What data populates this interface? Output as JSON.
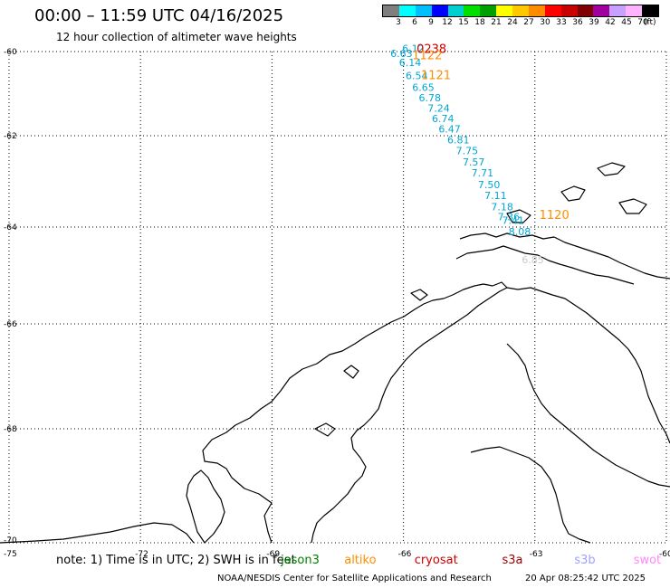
{
  "header": {
    "title": "00:00 – 11:59 UTC 04/16/2025",
    "subtitle": "12 hour collection of altimeter wave heights"
  },
  "colorbar": {
    "colors": [
      "#7f7f7f",
      "#00ffff",
      "#00bfff",
      "#0000ff",
      "#00cfcf",
      "#00e000",
      "#00a000",
      "#ffff00",
      "#ffc800",
      "#ff8c00",
      "#ff0000",
      "#c80000",
      "#800000",
      "#a000a0",
      "#c8a0ff",
      "#ffb4ff",
      "#000000"
    ],
    "ticks": [
      "3",
      "6",
      "9",
      "12",
      "15",
      "18",
      "21",
      "24",
      "27",
      "30",
      "33",
      "36",
      "39",
      "42",
      "45",
      "70"
    ],
    "unit": "(ft)"
  },
  "axes": {
    "lon_ticks": [
      {
        "value": -75,
        "label": "-75"
      },
      {
        "value": -72,
        "label": "-72"
      },
      {
        "value": -69,
        "label": "-69"
      },
      {
        "value": -66,
        "label": "-66"
      },
      {
        "value": -63,
        "label": "-63"
      },
      {
        "value": -60,
        "label": "-60"
      }
    ],
    "lat_ticks": [
      {
        "value": -60,
        "label": "-60"
      },
      {
        "value": -62,
        "label": "-62"
      },
      {
        "value": -64,
        "label": "-64"
      },
      {
        "value": -66,
        "label": "-66"
      },
      {
        "value": -68,
        "label": "-68"
      },
      {
        "value": -70,
        "label": "-70"
      }
    ],
    "grid": "dotted"
  },
  "track": {
    "color": "#00a6d6",
    "points": [
      {
        "lon": -66.03,
        "lat": -60.01,
        "label": "6.12"
      },
      {
        "lon": -66.3,
        "lat": -60.13,
        "label": "6.63"
      },
      {
        "lon": -66.1,
        "lat": -60.34,
        "label": "6.14"
      },
      {
        "lon": -65.95,
        "lat": -60.66,
        "label": "6.54"
      },
      {
        "lon": -65.8,
        "lat": -60.94,
        "label": "6.65"
      },
      {
        "lon": -65.65,
        "lat": -61.18,
        "label": "6.78"
      },
      {
        "lon": -65.45,
        "lat": -61.43,
        "label": "7.24"
      },
      {
        "lon": -65.35,
        "lat": -61.68,
        "label": "6.74"
      },
      {
        "lon": -65.2,
        "lat": -61.92,
        "label": "6.47"
      },
      {
        "lon": -65.0,
        "lat": -62.17,
        "label": "6.81"
      },
      {
        "lon": -64.8,
        "lat": -62.41,
        "label": "7.75"
      },
      {
        "lon": -64.65,
        "lat": -62.65,
        "label": "7.57"
      },
      {
        "lon": -64.45,
        "lat": -62.89,
        "label": "7.71"
      },
      {
        "lon": -64.3,
        "lat": -63.15,
        "label": "7.50"
      },
      {
        "lon": -64.15,
        "lat": -63.39,
        "label": "7.11"
      },
      {
        "lon": -64.0,
        "lat": -63.63,
        "label": "7.18"
      },
      {
        "lon": -63.85,
        "lat": -63.85,
        "label": "7.36"
      },
      {
        "lon": -63.75,
        "lat": -63.93,
        "label": "7.41"
      },
      {
        "lon": -63.6,
        "lat": -64.17,
        "label": "8.08"
      }
    ],
    "faded_label": {
      "lon": -63.3,
      "lat": -64.75,
      "text": "6.85"
    }
  },
  "time_labels": [
    {
      "lon": -65.7,
      "lat": -60.03,
      "text": "0238",
      "color": "#cc0000"
    },
    {
      "lon": -65.8,
      "lat": -60.18,
      "text": "1122",
      "color": "#ff8c00"
    },
    {
      "lon": -65.6,
      "lat": -60.66,
      "text": "1121",
      "color": "#ff8c00"
    },
    {
      "lon": -62.9,
      "lat": -63.82,
      "text": "1120",
      "color": "#ff8c00"
    }
  ],
  "note": "note:  1) Time is in UTC; 2) SWH is in feet",
  "satellites": [
    {
      "name": "jason3",
      "color": "#008000",
      "lon": -68.8
    },
    {
      "name": "altiko",
      "color": "#ff8c00",
      "lon": -67.35
    },
    {
      "name": "cryosat",
      "color": "#cc0000",
      "lon": -65.75
    },
    {
      "name": "s3a",
      "color": "#a00000",
      "lon": -63.75
    },
    {
      "name": "s3b",
      "color": "#a0a0ff",
      "lon": -62.1
    },
    {
      "name": "swot",
      "color": "#ff88ff",
      "lon": -60.75
    }
  ],
  "footer": {
    "credit": "NOAA/NESDIS Center for Satellite Applications and Research",
    "timestamp": "20 Apr 08:25:42 UTC 2025"
  }
}
